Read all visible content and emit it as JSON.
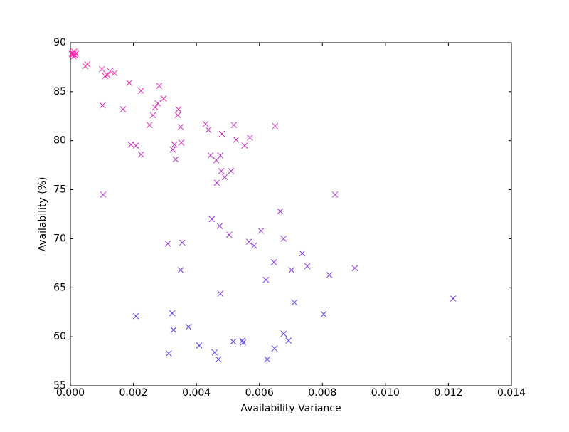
{
  "chart_data": {
    "type": "scatter",
    "xlabel": "Availability Variance",
    "ylabel": "Availability (%)",
    "colors": [
      "#4040ff",
      "#ff2aa8"
    ],
    "xlim": [
      0,
      0.014
    ],
    "xticks": [
      {
        "value": 0,
        "label": "0.000"
      },
      {
        "value": 0.002,
        "label": "0.002"
      },
      {
        "value": 0.004,
        "label": "0.004"
      },
      {
        "value": 0.006,
        "label": "0.006"
      },
      {
        "value": 0.008,
        "label": "0.008"
      },
      {
        "value": 0.01,
        "label": "0.010"
      },
      {
        "value": 0.012,
        "label": "0.012"
      },
      {
        "value": 0.014,
        "label": "0.014"
      }
    ],
    "ylim": [
      55,
      90
    ],
    "yticks": [
      55,
      60,
      65,
      70,
      75,
      80,
      85,
      90
    ],
    "x": [
      3e-05,
      6e-05,
      9e-05,
      0.00012,
      0.00015,
      0.00018,
      0.0001,
      5e-05,
      0.00047,
      0.00054,
      0.001,
      0.0011,
      0.00117,
      0.00126,
      0.0014,
      0.00187,
      0.00224,
      0.00282,
      0.00102,
      0.00167,
      0.00296,
      0.00278,
      0.00269,
      0.00262,
      0.00343,
      0.00341,
      0.0035,
      0.00251,
      0.00429,
      0.00438,
      0.00519,
      0.0065,
      0.00481,
      0.00526,
      0.0057,
      0.00553,
      0.00192,
      0.00208,
      0.0033,
      0.00325,
      0.00352,
      0.00224,
      0.00334,
      0.00445,
      0.00476,
      0.00463,
      0.00479,
      0.0051,
      0.0049,
      0.00465,
      0.00104,
      0.0084,
      0.00666,
      0.00449,
      0.00474,
      0.00504,
      0.00605,
      0.00677,
      0.00309,
      0.00355,
      0.00567,
      0.00583,
      0.00736,
      0.00646,
      0.00752,
      0.00702,
      0.00903,
      0.0035,
      0.00822,
      0.00621,
      0.00476,
      0.00711,
      0.01215,
      0.00208,
      0.00323,
      0.00804,
      0.00375,
      0.00327,
      0.00677,
      0.00409,
      0.00517,
      0.00546,
      0.00548,
      0.00693,
      0.00648,
      0.00458,
      0.00312,
      0.0047,
      0.00625
    ],
    "values": [
      88.9,
      89.0,
      88.8,
      89.1,
      88.7,
      88.9,
      88.6,
      88.8,
      87.6,
      87.8,
      87.3,
      86.6,
      86.7,
      87.1,
      86.9,
      85.9,
      85.1,
      85.6,
      83.6,
      83.2,
      84.3,
      83.8,
      83.4,
      82.6,
      83.2,
      82.6,
      81.4,
      81.6,
      81.7,
      81.1,
      81.6,
      81.5,
      80.7,
      80.1,
      80.3,
      79.5,
      79.6,
      79.5,
      79.6,
      79.1,
      79.8,
      78.6,
      78.1,
      78.5,
      78.5,
      78.0,
      76.9,
      76.9,
      76.3,
      75.7,
      74.5,
      74.5,
      72.8,
      72.0,
      71.3,
      70.4,
      70.8,
      70.0,
      69.5,
      69.6,
      69.7,
      69.3,
      68.5,
      67.6,
      67.2,
      66.8,
      67.0,
      66.8,
      66.3,
      65.8,
      64.4,
      63.5,
      63.9,
      62.1,
      62.4,
      62.3,
      61.0,
      60.7,
      60.3,
      59.1,
      59.5,
      59.6,
      59.4,
      59.6,
      58.8,
      58.4,
      58.3,
      57.7,
      57.7
    ]
  }
}
